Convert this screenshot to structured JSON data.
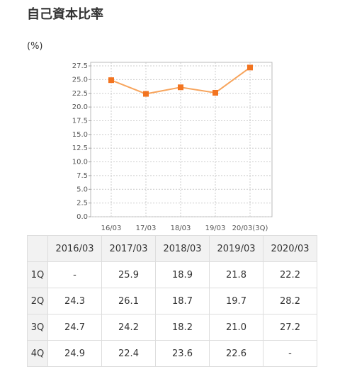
{
  "chart_data": {
    "type": "line",
    "title": "自己資本比率",
    "ylabel": "(%)",
    "categories": [
      "16/03",
      "17/03",
      "18/03",
      "19/03",
      "20/03(3Q)"
    ],
    "values": [
      24.9,
      22.4,
      23.6,
      22.6,
      27.2
    ],
    "line_color": "#f7a45c",
    "marker_color": "#f27420",
    "ylim": [
      0,
      28.15
    ],
    "yticks": [
      {
        "value": 0,
        "label": "0.0"
      },
      2.5,
      {
        "value": 5,
        "label": "5.0"
      },
      7.5,
      {
        "value": 10,
        "label": "10.0"
      },
      12.5,
      {
        "value": 15,
        "label": "15.0"
      },
      17.5,
      {
        "value": 20,
        "label": "20.0"
      },
      22.5,
      {
        "value": 25,
        "label": "25.0"
      },
      27.5
    ],
    "grid": true
  },
  "table": {
    "columns": [
      "2016/03",
      "2017/03",
      "2018/03",
      "2019/03",
      "2020/03"
    ],
    "rows": [
      {
        "label": "1Q",
        "cells": [
          "-",
          "25.9",
          "18.9",
          "21.8",
          "22.2"
        ]
      },
      {
        "label": "2Q",
        "cells": [
          "24.3",
          "26.1",
          "18.7",
          "19.7",
          "28.2"
        ]
      },
      {
        "label": "3Q",
        "cells": [
          "24.7",
          "24.2",
          "18.2",
          "21.0",
          "27.2"
        ]
      },
      {
        "label": "4Q",
        "cells": [
          "24.9",
          "22.4",
          "23.6",
          "22.6",
          "-"
        ]
      }
    ]
  }
}
